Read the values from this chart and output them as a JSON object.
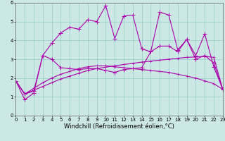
{
  "xlabel": "Windchill (Refroidissement éolien,°C)",
  "bg_color": "#cce8e4",
  "line_color": "#aa00aa",
  "grid_color": "#99cccc",
  "x": [
    0,
    1,
    2,
    3,
    4,
    5,
    6,
    7,
    8,
    9,
    10,
    11,
    12,
    13,
    14,
    15,
    16,
    17,
    18,
    19,
    20,
    21,
    22,
    23
  ],
  "line1_y": [
    1.85,
    0.85,
    1.2,
    3.2,
    3.85,
    4.4,
    4.7,
    4.6,
    5.1,
    5.0,
    5.85,
    4.1,
    5.3,
    5.35,
    3.55,
    3.4,
    5.5,
    5.35,
    3.5,
    4.05,
    3.2,
    4.35,
    2.6,
    1.4
  ],
  "line2_y": [
    1.85,
    1.15,
    1.3,
    3.2,
    3.0,
    2.55,
    2.5,
    2.45,
    2.5,
    2.5,
    2.4,
    2.3,
    2.45,
    2.5,
    2.55,
    3.4,
    3.7,
    3.7,
    3.4,
    4.05,
    3.0,
    3.2,
    2.8,
    1.4
  ],
  "smooth1_x": [
    0,
    1,
    2,
    3,
    4,
    5,
    6,
    7,
    8,
    9,
    10,
    11,
    12,
    13,
    14,
    15,
    16,
    17,
    18,
    19,
    20,
    21,
    22,
    23
  ],
  "smooth1_y": [
    1.85,
    1.15,
    1.45,
    1.75,
    2.0,
    2.2,
    2.35,
    2.5,
    2.6,
    2.65,
    2.65,
    2.6,
    2.55,
    2.5,
    2.45,
    2.4,
    2.35,
    2.3,
    2.2,
    2.1,
    2.0,
    1.85,
    1.7,
    1.4
  ],
  "smooth2_x": [
    0,
    1,
    2,
    3,
    4,
    5,
    6,
    7,
    8,
    9,
    10,
    11,
    12,
    13,
    14,
    15,
    16,
    17,
    18,
    19,
    20,
    21,
    22,
    23
  ],
  "smooth2_y": [
    1.85,
    1.15,
    1.35,
    1.55,
    1.75,
    1.95,
    2.1,
    2.25,
    2.4,
    2.5,
    2.58,
    2.65,
    2.72,
    2.78,
    2.85,
    2.9,
    2.95,
    3.0,
    3.05,
    3.1,
    3.12,
    3.15,
    3.1,
    1.4
  ],
  "xlim": [
    0,
    23
  ],
  "ylim": [
    0,
    6
  ],
  "markersize": 3,
  "linewidth": 0.8,
  "tick_fontsize": 5,
  "xlabel_fontsize": 6
}
